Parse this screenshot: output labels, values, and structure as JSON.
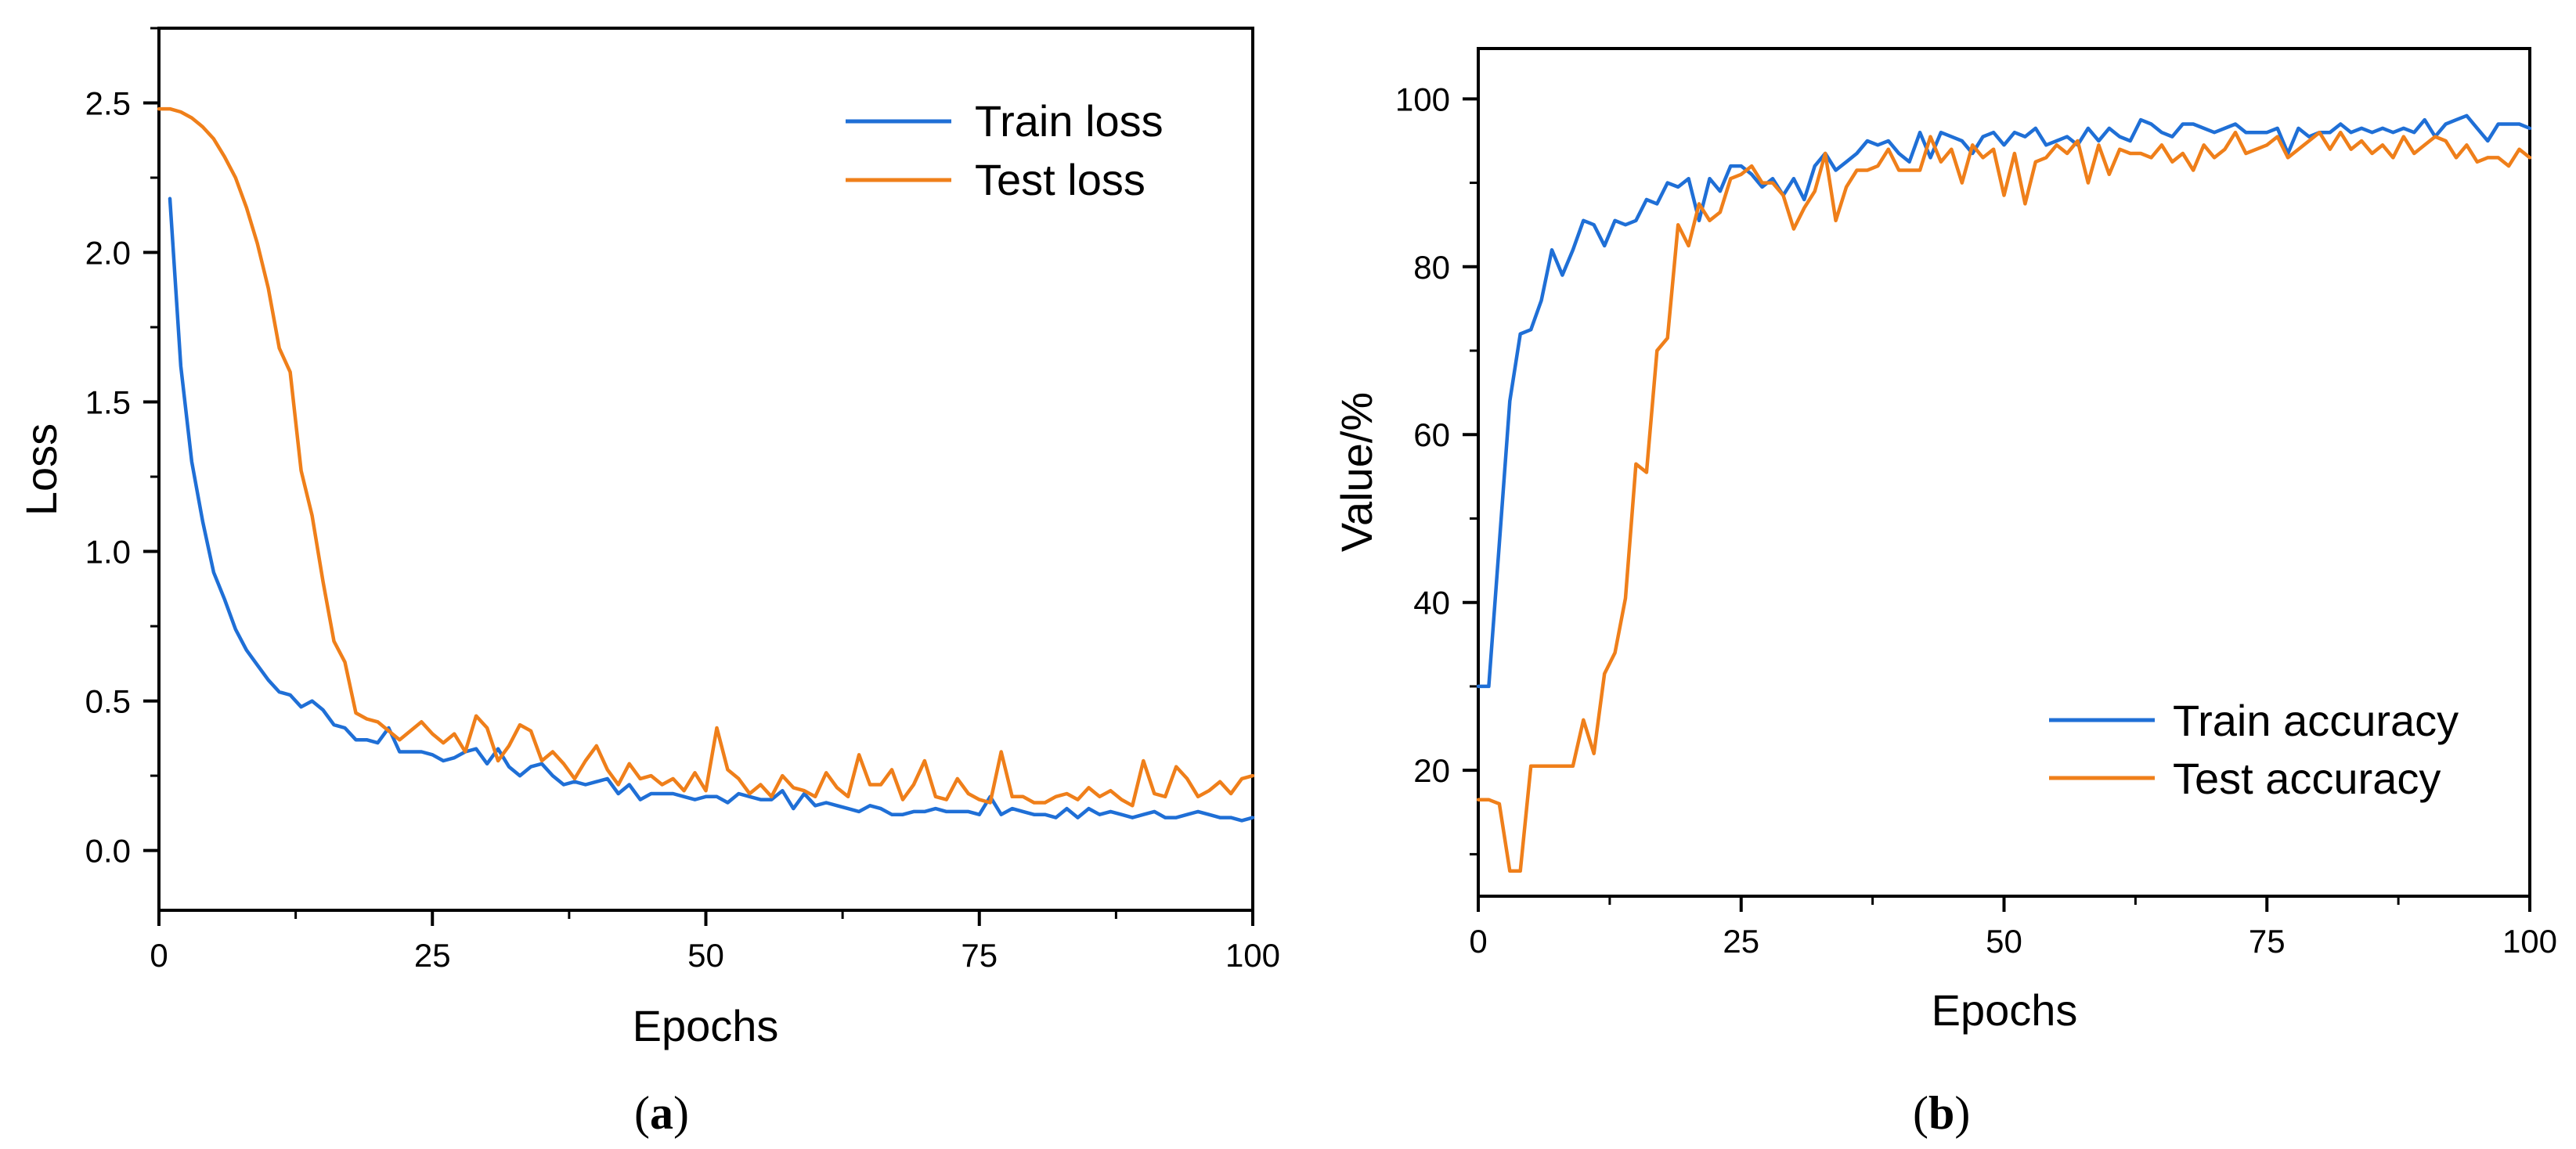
{
  "colors": {
    "train": "#1f6fd6",
    "test": "#ef7f1a",
    "axis": "#000000"
  },
  "chart_data": [
    {
      "type": "line",
      "panel_label": "a",
      "xlabel": "Epochs",
      "ylabel": "Loss",
      "xlim": [
        0,
        100
      ],
      "ylim": [
        -0.2,
        2.75
      ],
      "xticks": [
        0,
        25,
        50,
        75,
        100
      ],
      "xtick_labels": [
        "0",
        "25",
        "50",
        "75",
        "100"
      ],
      "yticks": [
        0.0,
        0.5,
        1.0,
        1.5,
        2.0,
        2.5
      ],
      "ytick_labels": [
        "0.0",
        "0.5",
        "1.0",
        "1.5",
        "2.0",
        "2.5"
      ],
      "minor_x_step": 12.5,
      "minor_y_step": 0.25,
      "legend_position": "top-right",
      "grid": false,
      "series": [
        {
          "name": "Train loss",
          "color_key": "train",
          "x": [
            1,
            2,
            3,
            4,
            5,
            6,
            7,
            8,
            9,
            10,
            11,
            12,
            13,
            14,
            15,
            16,
            17,
            18,
            19,
            20,
            21,
            22,
            23,
            24,
            25,
            26,
            27,
            28,
            29,
            30,
            31,
            32,
            33,
            34,
            35,
            36,
            37,
            38,
            39,
            40,
            41,
            42,
            43,
            44,
            45,
            46,
            47,
            48,
            49,
            50,
            51,
            52,
            53,
            54,
            55,
            56,
            57,
            58,
            59,
            60,
            61,
            62,
            63,
            64,
            65,
            66,
            67,
            68,
            69,
            70,
            71,
            72,
            73,
            74,
            75,
            76,
            77,
            78,
            79,
            80,
            81,
            82,
            83,
            84,
            85,
            86,
            87,
            88,
            89,
            90,
            91,
            92,
            93,
            94,
            95,
            96,
            97,
            98,
            99,
            100
          ],
          "values": [
            2.18,
            1.62,
            1.3,
            1.1,
            0.93,
            0.84,
            0.74,
            0.67,
            0.62,
            0.57,
            0.53,
            0.52,
            0.48,
            0.5,
            0.47,
            0.42,
            0.41,
            0.37,
            0.37,
            0.36,
            0.41,
            0.33,
            0.33,
            0.33,
            0.32,
            0.3,
            0.31,
            0.33,
            0.34,
            0.29,
            0.34,
            0.28,
            0.25,
            0.28,
            0.29,
            0.25,
            0.22,
            0.23,
            0.22,
            0.23,
            0.24,
            0.19,
            0.22,
            0.17,
            0.19,
            0.19,
            0.19,
            0.18,
            0.17,
            0.18,
            0.18,
            0.16,
            0.19,
            0.18,
            0.17,
            0.17,
            0.2,
            0.14,
            0.19,
            0.15,
            0.16,
            0.15,
            0.14,
            0.13,
            0.15,
            0.14,
            0.12,
            0.12,
            0.13,
            0.13,
            0.14,
            0.13,
            0.13,
            0.13,
            0.12,
            0.18,
            0.12,
            0.14,
            0.13,
            0.12,
            0.12,
            0.11,
            0.14,
            0.11,
            0.14,
            0.12,
            0.13,
            0.12,
            0.11,
            0.12,
            0.13,
            0.11,
            0.11,
            0.12,
            0.13,
            0.12,
            0.11,
            0.11,
            0.1,
            0.11
          ]
        },
        {
          "name": "Test loss",
          "color_key": "test",
          "x": [
            0,
            1,
            2,
            3,
            4,
            5,
            6,
            7,
            8,
            9,
            10,
            11,
            12,
            13,
            14,
            15,
            16,
            17,
            18,
            19,
            20,
            21,
            22,
            23,
            24,
            25,
            26,
            27,
            28,
            29,
            30,
            31,
            32,
            33,
            34,
            35,
            36,
            37,
            38,
            39,
            40,
            41,
            42,
            43,
            44,
            45,
            46,
            47,
            48,
            49,
            50,
            51,
            52,
            53,
            54,
            55,
            56,
            57,
            58,
            59,
            60,
            61,
            62,
            63,
            64,
            65,
            66,
            67,
            68,
            69,
            70,
            71,
            72,
            73,
            74,
            75,
            76,
            77,
            78,
            79,
            80,
            81,
            82,
            83,
            84,
            85,
            86,
            87,
            88,
            89,
            90,
            91,
            92,
            93,
            94,
            95,
            96,
            97,
            98,
            99,
            100
          ],
          "values": [
            2.48,
            2.48,
            2.47,
            2.45,
            2.42,
            2.38,
            2.32,
            2.25,
            2.15,
            2.03,
            1.88,
            1.68,
            1.6,
            1.27,
            1.12,
            0.9,
            0.7,
            0.63,
            0.46,
            0.44,
            0.43,
            0.4,
            0.37,
            0.4,
            0.43,
            0.39,
            0.36,
            0.39,
            0.33,
            0.45,
            0.41,
            0.3,
            0.35,
            0.42,
            0.4,
            0.3,
            0.33,
            0.29,
            0.24,
            0.3,
            0.35,
            0.27,
            0.22,
            0.29,
            0.24,
            0.25,
            0.22,
            0.24,
            0.2,
            0.26,
            0.2,
            0.41,
            0.27,
            0.24,
            0.19,
            0.22,
            0.18,
            0.25,
            0.21,
            0.2,
            0.18,
            0.26,
            0.21,
            0.18,
            0.32,
            0.22,
            0.22,
            0.27,
            0.17,
            0.22,
            0.3,
            0.18,
            0.17,
            0.24,
            0.19,
            0.17,
            0.16,
            0.33,
            0.18,
            0.18,
            0.16,
            0.16,
            0.18,
            0.19,
            0.17,
            0.21,
            0.18,
            0.2,
            0.17,
            0.15,
            0.3,
            0.19,
            0.18,
            0.28,
            0.24,
            0.18,
            0.2,
            0.23,
            0.19,
            0.24,
            0.25
          ]
        }
      ]
    },
    {
      "type": "line",
      "panel_label": "b",
      "xlabel": "Epochs",
      "ylabel": "Value/%",
      "xlim": [
        0,
        100
      ],
      "ylim": [
        5,
        106
      ],
      "xticks": [
        0,
        25,
        50,
        75,
        100
      ],
      "xtick_labels": [
        "0",
        "25",
        "50",
        "75",
        "100"
      ],
      "yticks": [
        20,
        40,
        60,
        80,
        100
      ],
      "ytick_labels": [
        "20",
        "40",
        "60",
        "80",
        "100"
      ],
      "minor_x_step": 12.5,
      "minor_y_step": 10,
      "legend_position": "bottom-right",
      "grid": false,
      "series": [
        {
          "name": "Train accuracy",
          "color_key": "train",
          "x": [
            0,
            1,
            2,
            3,
            4,
            5,
            6,
            7,
            8,
            9,
            10,
            11,
            12,
            13,
            14,
            15,
            16,
            17,
            18,
            19,
            20,
            21,
            22,
            23,
            24,
            25,
            26,
            27,
            28,
            29,
            30,
            31,
            32,
            33,
            34,
            35,
            36,
            37,
            38,
            39,
            40,
            41,
            42,
            43,
            44,
            45,
            46,
            47,
            48,
            49,
            50,
            51,
            52,
            53,
            54,
            55,
            56,
            57,
            58,
            59,
            60,
            61,
            62,
            63,
            64,
            65,
            66,
            67,
            68,
            69,
            70,
            71,
            72,
            73,
            74,
            75,
            76,
            77,
            78,
            79,
            80,
            81,
            82,
            83,
            84,
            85,
            86,
            87,
            88,
            89,
            90,
            91,
            92,
            93,
            94,
            95,
            96,
            97,
            98,
            99,
            100
          ],
          "values": [
            30,
            30,
            47,
            64,
            72,
            72.5,
            76,
            82,
            79,
            82,
            85.5,
            85,
            82.5,
            85.5,
            85,
            85.5,
            88,
            87.5,
            90,
            89.5,
            90.5,
            85.5,
            90.5,
            89,
            92,
            92,
            91,
            89.5,
            90.5,
            88.5,
            90.5,
            88,
            92,
            93.5,
            91.5,
            92.5,
            93.5,
            95,
            94.5,
            95,
            93.5,
            92.5,
            96,
            93,
            96,
            95.5,
            95,
            93.5,
            95.5,
            96,
            94.5,
            96,
            95.5,
            96.5,
            94.5,
            95,
            95.5,
            94.5,
            96.5,
            95,
            96.5,
            95.5,
            95,
            97.5,
            97,
            96,
            95.5,
            97,
            97,
            96.5,
            96,
            96.5,
            97,
            96,
            96,
            96,
            96.5,
            93.5,
            96.5,
            95.5,
            96,
            96,
            97,
            96,
            96.5,
            96,
            96.5,
            96,
            96.5,
            96,
            97.5,
            95.5,
            97,
            97.5,
            98,
            96.5,
            95,
            97,
            97,
            97,
            96.5
          ]
        },
        {
          "name": "Test accuracy",
          "color_key": "test",
          "x": [
            0,
            1,
            2,
            3,
            4,
            5,
            6,
            7,
            8,
            9,
            10,
            11,
            12,
            13,
            14,
            15,
            16,
            17,
            18,
            19,
            20,
            21,
            22,
            23,
            24,
            25,
            26,
            27,
            28,
            29,
            30,
            31,
            32,
            33,
            34,
            35,
            36,
            37,
            38,
            39,
            40,
            41,
            42,
            43,
            44,
            45,
            46,
            47,
            48,
            49,
            50,
            51,
            52,
            53,
            54,
            55,
            56,
            57,
            58,
            59,
            60,
            61,
            62,
            63,
            64,
            65,
            66,
            67,
            68,
            69,
            70,
            71,
            72,
            73,
            74,
            75,
            76,
            77,
            78,
            79,
            80,
            81,
            82,
            83,
            84,
            85,
            86,
            87,
            88,
            89,
            90,
            91,
            92,
            93,
            94,
            95,
            96,
            97,
            98,
            99,
            100
          ],
          "values": [
            16.5,
            16.5,
            16,
            8,
            8,
            20.5,
            20.5,
            20.5,
            20.5,
            20.5,
            26,
            22,
            31.5,
            34,
            40.5,
            56.5,
            55.5,
            70,
            71.5,
            85,
            82.5,
            87.5,
            85.5,
            86.5,
            90.5,
            91,
            92,
            90,
            90,
            88.5,
            84.5,
            87,
            89,
            93.5,
            85.5,
            89.5,
            91.5,
            91.5,
            92,
            94,
            91.5,
            91.5,
            91.5,
            95.5,
            92.5,
            94,
            90,
            94.5,
            93,
            94,
            88.5,
            93.5,
            87.5,
            92.5,
            93,
            94.5,
            93.5,
            95,
            90,
            94.5,
            91,
            94,
            93.5,
            93.5,
            93,
            94.5,
            92.5,
            93.5,
            91.5,
            94.5,
            93,
            94,
            96,
            93.5,
            94,
            94.5,
            95.5,
            93,
            94,
            95,
            96,
            94,
            96,
            94,
            95,
            93.5,
            94.5,
            93,
            95.5,
            93.5,
            94.5,
            95.5,
            95,
            93,
            94.5,
            92.5,
            93,
            93,
            92,
            94,
            93
          ]
        }
      ]
    }
  ]
}
